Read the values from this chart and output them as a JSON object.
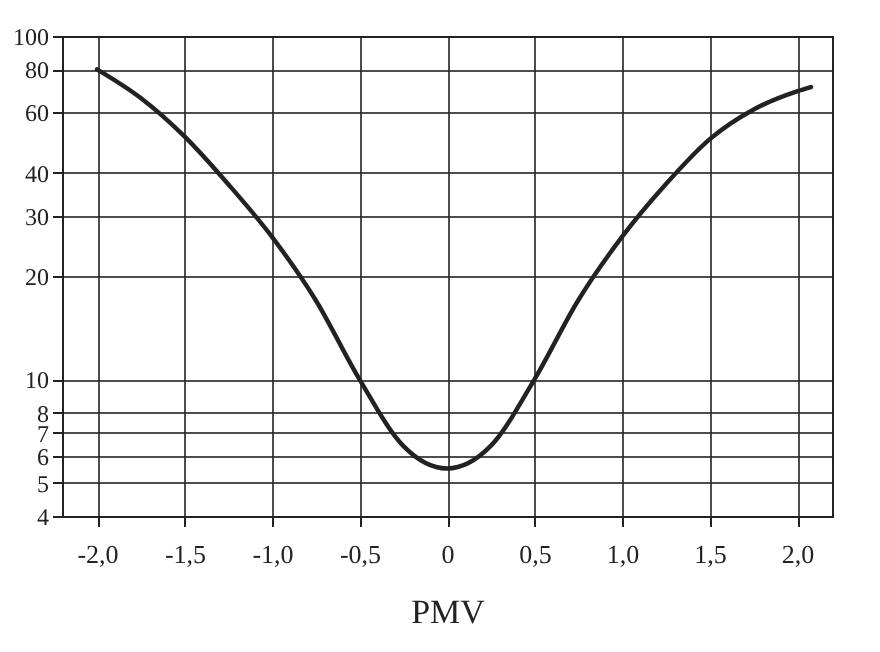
{
  "chart_data": {
    "type": "line",
    "xlabel": "PMV",
    "x": [
      -2.0,
      -1.75,
      -1.5,
      -1.25,
      -1.0,
      -0.75,
      -0.5,
      -0.25,
      0,
      0.25,
      0.5,
      0.75,
      1.0,
      1.25,
      1.5,
      1.75,
      2.0,
      2.08
    ],
    "series": [
      {
        "color": "#222222",
        "values": [
          80,
          66,
          51,
          37,
          26,
          17,
          10,
          6.4,
          5.5,
          6.4,
          10,
          17,
          26,
          37,
          50,
          61,
          69,
          71
        ]
      }
    ],
    "log": "y",
    "xlim": [
      -2.2,
      2.2
    ],
    "ylim": [
      4,
      100
    ],
    "xticks": [
      {
        "value": -2,
        "label": "-2,0"
      },
      {
        "value": -1.5,
        "label": "-1,5"
      },
      {
        "value": -1,
        "label": "-1,0"
      },
      {
        "value": -0.5,
        "label": "-0,5"
      },
      0,
      {
        "value": 0.5,
        "label": "0,5"
      },
      {
        "value": 1,
        "label": "1,0"
      },
      {
        "value": 1.5,
        "label": "1,5"
      },
      {
        "value": 2,
        "label": "2,0"
      }
    ],
    "yticks": [
      4,
      5,
      6,
      7,
      8,
      10,
      20,
      30,
      40,
      60,
      80,
      100
    ],
    "grid": true,
    "marker": "none",
    "line_style": "solid"
  }
}
